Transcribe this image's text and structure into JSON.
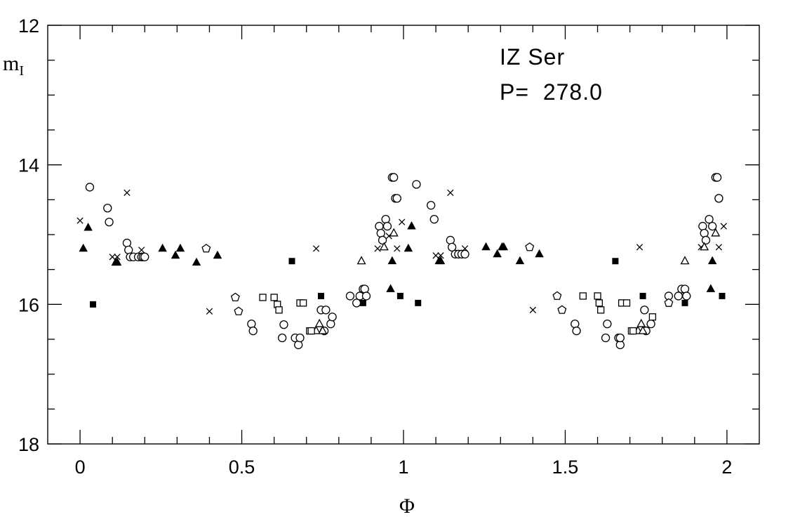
{
  "chart_data": {
    "type": "scatter",
    "title": "",
    "xlabel": "Φ",
    "ylabel": "m",
    "ylabel_subscript": "I",
    "xlim": [
      -0.1,
      2.1
    ],
    "ylim": [
      18,
      12
    ],
    "y_inverted": true,
    "x_ticks": [
      "0",
      "0.5",
      "1",
      "1.5",
      "2"
    ],
    "x_tick_values": [
      0,
      0.5,
      1,
      1.5,
      2
    ],
    "y_ticks": [
      "12",
      "14",
      "16",
      "18"
    ],
    "y_tick_values": [
      12,
      14,
      16,
      18
    ],
    "x_minor_step": 0.1,
    "y_minor_step": 0.5,
    "grid": false,
    "annotations": [
      {
        "text": "IZ Ser"
      },
      {
        "text": "P=  278.0"
      }
    ],
    "series": [
      {
        "marker": "open-circle",
        "x": [
          0.03,
          0.085,
          0.09,
          0.145,
          0.15,
          0.155,
          0.165,
          0.18,
          0.19,
          0.195,
          0.2,
          0.53,
          0.535,
          0.625,
          0.63,
          0.665,
          0.675,
          0.68,
          0.745,
          0.755,
          0.76,
          0.775,
          0.78,
          0.835,
          0.855,
          0.865,
          0.875,
          0.88,
          0.885,
          0.925,
          0.93,
          0.935,
          0.945,
          0.95,
          0.965,
          0.97,
          0.975,
          0.98,
          1.04,
          1.085,
          1.095,
          1.145,
          1.15,
          1.16,
          1.17,
          1.18,
          1.19,
          1.53,
          1.535,
          1.625,
          1.63,
          1.665,
          1.67,
          1.67,
          1.745,
          1.75,
          1.765,
          1.82,
          1.85,
          1.86,
          1.87,
          1.875,
          1.925,
          1.93,
          1.935,
          1.945,
          1.955,
          1.965,
          1.97,
          1.975,
          1.975
        ],
        "y": [
          14.32,
          14.62,
          14.82,
          15.12,
          15.22,
          15.32,
          15.32,
          15.32,
          15.32,
          15.32,
          15.32,
          16.28,
          16.38,
          16.48,
          16.29,
          16.48,
          16.58,
          16.48,
          16.08,
          16.38,
          16.08,
          16.28,
          16.18,
          15.88,
          15.98,
          15.88,
          15.78,
          15.78,
          15.88,
          14.88,
          14.98,
          15.08,
          14.78,
          14.88,
          14.18,
          14.18,
          14.48,
          14.48,
          14.28,
          14.58,
          14.78,
          15.08,
          15.18,
          15.28,
          15.28,
          15.28,
          15.28,
          16.28,
          16.38,
          16.48,
          16.28,
          16.48,
          16.58,
          16.48,
          16.08,
          16.38,
          16.28,
          15.88,
          15.88,
          15.78,
          15.78,
          15.88,
          14.88,
          14.98,
          15.08,
          14.78,
          14.88,
          14.18,
          14.18,
          14.48,
          14.48
        ]
      },
      {
        "marker": "cross",
        "x": [
          0.0,
          0.1,
          0.115,
          0.145,
          0.19,
          0.4,
          0.73,
          0.92,
          0.955,
          0.98,
          0.995,
          1.1,
          1.115,
          1.145,
          1.19,
          1.4,
          1.73,
          1.92,
          1.975,
          1.99
        ],
        "y": [
          14.8,
          15.32,
          15.32,
          14.4,
          15.22,
          16.1,
          15.2,
          15.2,
          15.02,
          15.2,
          14.82,
          15.3,
          15.3,
          14.4,
          15.2,
          16.08,
          15.18,
          15.18,
          15.18,
          14.88
        ]
      },
      {
        "marker": "filled-triangle",
        "x": [
          0.01,
          0.025,
          0.11,
          0.115,
          0.255,
          0.295,
          0.31,
          0.36,
          0.425,
          0.96,
          0.965,
          1.015,
          1.025,
          1.11,
          1.115,
          1.255,
          1.29,
          1.305,
          1.31,
          1.36,
          1.42,
          1.95,
          1.955
        ],
        "y": [
          15.2,
          14.9,
          15.4,
          15.4,
          15.2,
          15.3,
          15.2,
          15.4,
          15.3,
          15.78,
          15.38,
          15.2,
          14.88,
          15.38,
          15.38,
          15.18,
          15.28,
          15.18,
          15.18,
          15.38,
          15.28,
          15.78,
          15.38
        ]
      },
      {
        "marker": "open-triangle",
        "x": [
          0.73,
          0.74,
          0.75,
          0.87,
          0.94,
          0.97,
          1.725,
          1.735,
          1.74,
          1.87,
          1.93,
          1.965
        ],
        "y": [
          16.38,
          16.28,
          16.38,
          15.38,
          15.18,
          14.98,
          16.38,
          16.28,
          16.38,
          15.38,
          15.18,
          14.98
        ]
      },
      {
        "marker": "filled-square",
        "x": [
          0.04,
          0.655,
          0.745,
          0.875,
          0.99,
          1.045,
          1.655,
          1.74,
          1.87,
          1.985
        ],
        "y": [
          16.0,
          15.38,
          15.88,
          15.98,
          15.88,
          15.98,
          15.38,
          15.88,
          15.98,
          15.88
        ]
      },
      {
        "marker": "open-square",
        "x": [
          0.565,
          0.6,
          0.61,
          0.615,
          0.68,
          0.69,
          0.71,
          0.715,
          1.555,
          1.6,
          1.605,
          1.61,
          1.675,
          1.69,
          1.705,
          1.71,
          1.77
        ],
        "y": [
          15.9,
          15.9,
          16.0,
          16.08,
          15.98,
          15.98,
          16.38,
          16.38,
          15.88,
          15.88,
          15.98,
          16.08,
          15.98,
          15.98,
          16.38,
          16.38,
          16.18
        ]
      },
      {
        "marker": "open-pentagon",
        "x": [
          0.39,
          0.48,
          0.49,
          1.39,
          1.475,
          1.49,
          1.82
        ],
        "y": [
          15.2,
          15.9,
          16.1,
          15.18,
          15.88,
          16.08,
          15.98
        ]
      }
    ]
  }
}
